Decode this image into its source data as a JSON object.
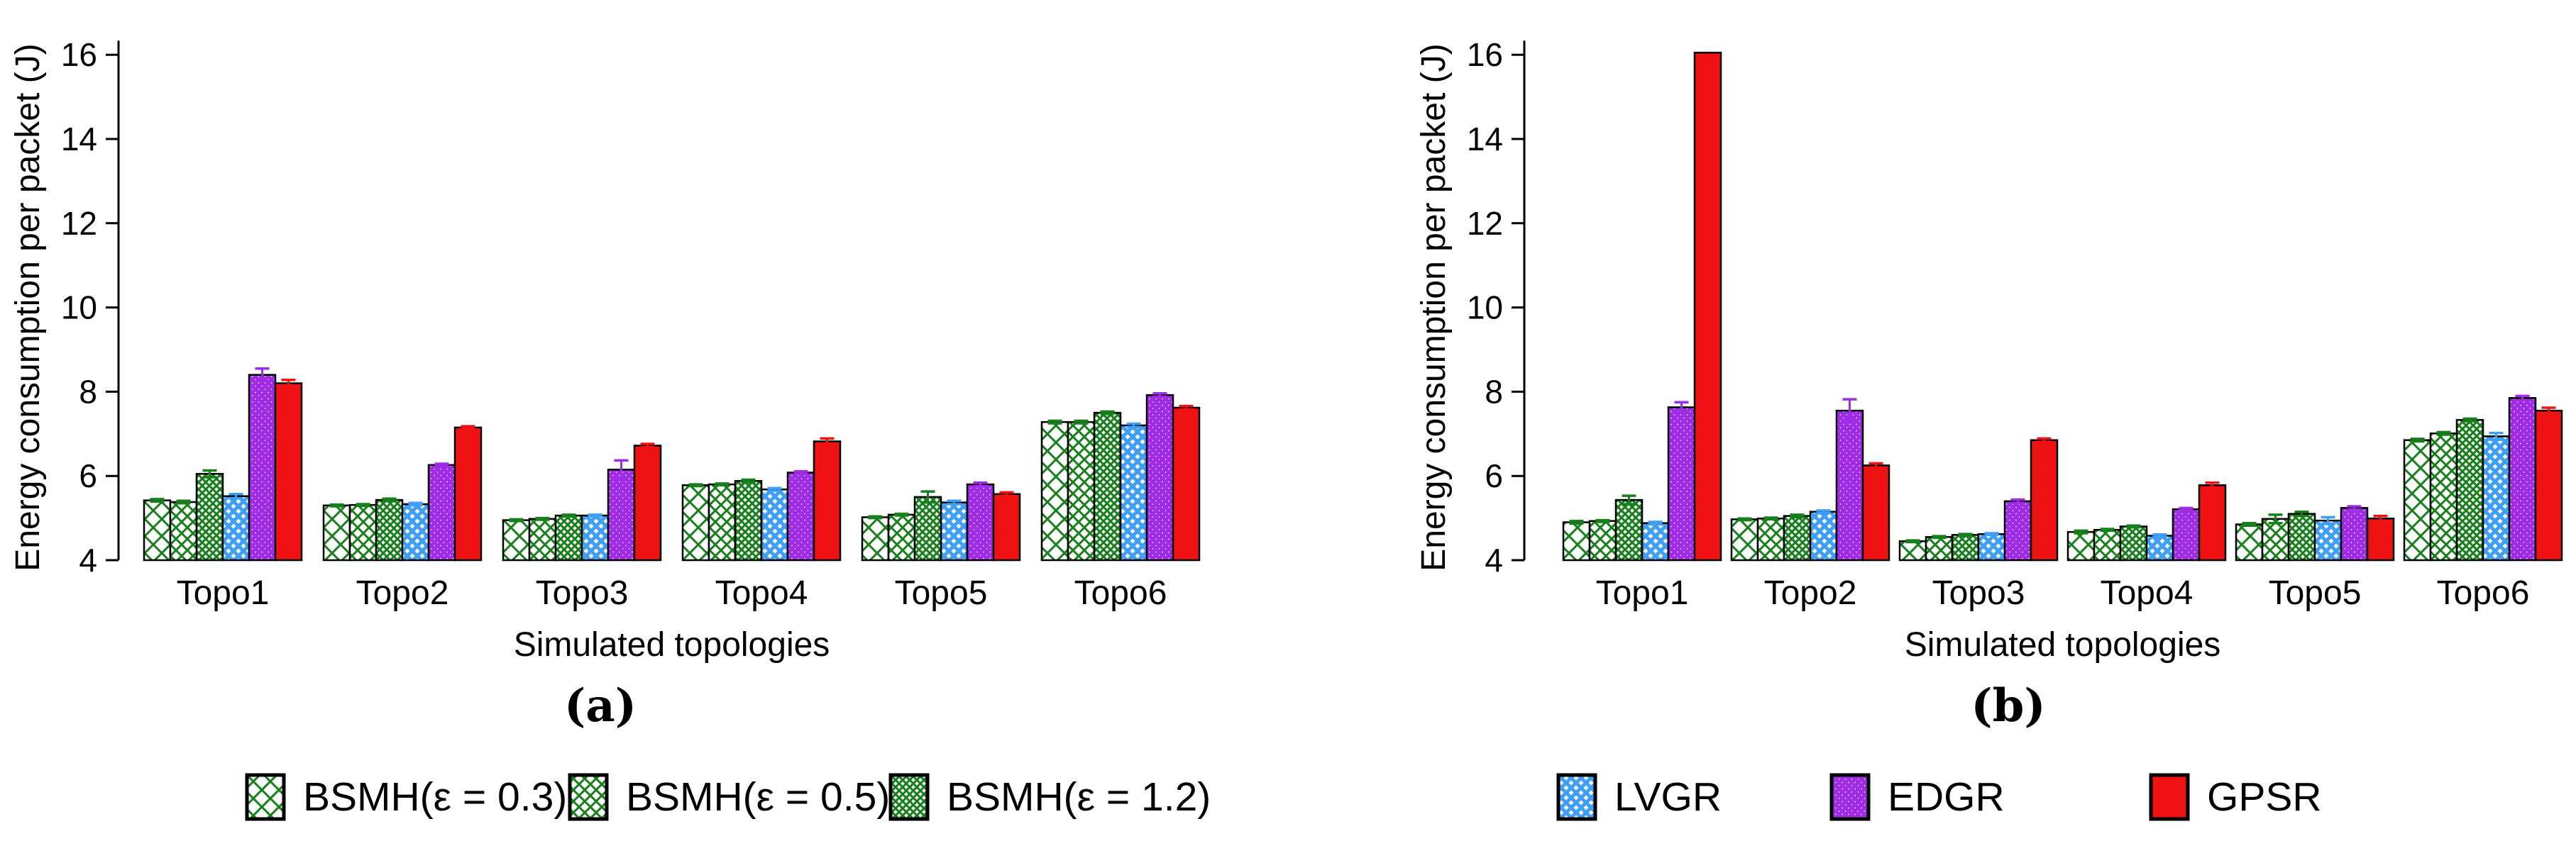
{
  "figure": {
    "ylabel": "Energy consumption per packet (J)",
    "xlabel": "Simulated topologies",
    "yticks": [
      4,
      6,
      8,
      10,
      12,
      14,
      16
    ],
    "categories": [
      "Topo1",
      "Topo2",
      "Topo3",
      "Topo4",
      "Topo5",
      "Topo6"
    ],
    "sublabel_left": "(a)",
    "sublabel_right": "(b)"
  },
  "colors": {
    "bsmh_green": "#17801d",
    "lvgr_blue": "#3f9ef5",
    "edgr_purple": "#a02ce8",
    "gpsr_red": "#ee1212",
    "axis_black": "#000000",
    "background": "#ffffff"
  },
  "legend": {
    "items": [
      {
        "label": "BSMH(ε = 0.3)",
        "pattern": "bsmh03",
        "color": "#17801d",
        "x": 345
      },
      {
        "label": "BSMH(ε = 0.5)",
        "pattern": "bsmh05",
        "color": "#17801d",
        "x": 800
      },
      {
        "label": "BSMH(ε = 1.2)",
        "pattern": "bsmh12",
        "color": "#17801d",
        "x": 1252
      },
      {
        "label": "LVGR",
        "pattern": "lvgr",
        "color": "#3f9ef5",
        "x": 2193
      },
      {
        "label": "EDGR",
        "pattern": "edgr",
        "color": "#a02ce8",
        "x": 2578
      },
      {
        "label": "GPSR",
        "pattern": "gpsr",
        "color": "#ee1212",
        "x": 3028
      }
    ]
  },
  "chart_data": [
    {
      "type": "bar",
      "title": "(a)",
      "xlabel": "Simulated topologies",
      "ylabel": "Energy consumption per packet (J)",
      "ylim": [
        4,
        16.6
      ],
      "yticks": [
        4,
        6,
        8,
        10,
        12,
        14,
        16
      ],
      "grid": false,
      "legend_position": "bottom",
      "categories": [
        "Topo1",
        "Topo2",
        "Topo3",
        "Topo4",
        "Topo5",
        "Topo6"
      ],
      "series": [
        {
          "name": "BSMH(ε = 0.3)",
          "pattern": "bsmh03",
          "color": "#17801d",
          "values": [
            5.42,
            5.3,
            4.95,
            5.78,
            5.02,
            7.28
          ],
          "errors": [
            0.03,
            0.02,
            0.02,
            0.02,
            0.02,
            0.03
          ]
        },
        {
          "name": "BSMH(ε = 0.5)",
          "pattern": "bsmh05",
          "color": "#17801d",
          "values": [
            5.38,
            5.31,
            4.98,
            5.8,
            5.08,
            7.28
          ],
          "errors": [
            0.03,
            0.02,
            0.02,
            0.02,
            0.02,
            0.03
          ]
        },
        {
          "name": "BSMH(ε = 1.2)",
          "pattern": "bsmh12",
          "color": "#17801d",
          "values": [
            6.05,
            5.43,
            5.06,
            5.88,
            5.5,
            7.5
          ],
          "errors": [
            0.08,
            0.03,
            0.02,
            0.03,
            0.13,
            0.03
          ]
        },
        {
          "name": "LVGR",
          "pattern": "lvgr",
          "color": "#3f9ef5",
          "values": [
            5.52,
            5.33,
            5.06,
            5.68,
            5.37,
            7.2
          ],
          "errors": [
            0.05,
            0.03,
            0.02,
            0.03,
            0.04,
            0.04
          ]
        },
        {
          "name": "EDGR",
          "pattern": "edgr",
          "color": "#a02ce8",
          "values": [
            8.4,
            6.26,
            6.15,
            6.08,
            5.8,
            7.92
          ],
          "errors": [
            0.15,
            0.03,
            0.22,
            0.03,
            0.04,
            0.04
          ]
        },
        {
          "name": "GPSR",
          "pattern": "gpsr",
          "color": "#ee1212",
          "values": [
            8.2,
            7.15,
            6.72,
            6.82,
            5.57,
            7.62
          ],
          "errors": [
            0.08,
            0.03,
            0.04,
            0.07,
            0.04,
            0.04
          ]
        }
      ]
    },
    {
      "type": "bar",
      "title": "(b)",
      "xlabel": "Simulated topologies",
      "ylabel": "Energy consumption per packet (J)",
      "ylim": [
        4,
        16.6
      ],
      "yticks": [
        4,
        6,
        8,
        10,
        12,
        14,
        16
      ],
      "grid": false,
      "legend_position": "bottom",
      "categories": [
        "Topo1",
        "Topo2",
        "Topo3",
        "Topo4",
        "Topo5",
        "Topo6"
      ],
      "series": [
        {
          "name": "BSMH(ε = 0.3)",
          "pattern": "bsmh03",
          "color": "#17801d",
          "values": [
            4.9,
            4.97,
            4.45,
            4.67,
            4.85,
            6.85
          ],
          "errors": [
            0.03,
            0.02,
            0.02,
            0.03,
            0.03,
            0.03
          ]
        },
        {
          "name": "BSMH(ε = 0.5)",
          "pattern": "bsmh05",
          "color": "#17801d",
          "values": [
            4.93,
            4.99,
            4.55,
            4.72,
            4.98,
            7.01
          ],
          "errors": [
            0.02,
            0.02,
            0.02,
            0.02,
            0.1,
            0.03
          ]
        },
        {
          "name": "BSMH(ε = 1.2)",
          "pattern": "bsmh12",
          "color": "#17801d",
          "values": [
            5.43,
            5.05,
            4.6,
            4.8,
            5.1,
            7.33
          ],
          "errors": [
            0.1,
            0.03,
            0.02,
            0.02,
            0.05,
            0.03
          ]
        },
        {
          "name": "LVGR",
          "pattern": "lvgr",
          "color": "#3f9ef5",
          "values": [
            4.88,
            5.15,
            4.62,
            4.58,
            4.94,
            6.94
          ],
          "errors": [
            0.03,
            0.03,
            0.02,
            0.03,
            0.08,
            0.08
          ]
        },
        {
          "name": "EDGR",
          "pattern": "edgr",
          "color": "#a02ce8",
          "values": [
            7.63,
            7.55,
            5.4,
            5.21,
            5.24,
            7.85
          ],
          "errors": [
            0.12,
            0.27,
            0.04,
            0.03,
            0.04,
            0.05
          ]
        },
        {
          "name": "GPSR",
          "pattern": "gpsr",
          "color": "#ee1212",
          "values": [
            16.05,
            6.25,
            6.85,
            5.78,
            4.99,
            7.55
          ],
          "errors": [
            0.0,
            0.05,
            0.04,
            0.06,
            0.06,
            0.07
          ]
        }
      ]
    }
  ]
}
